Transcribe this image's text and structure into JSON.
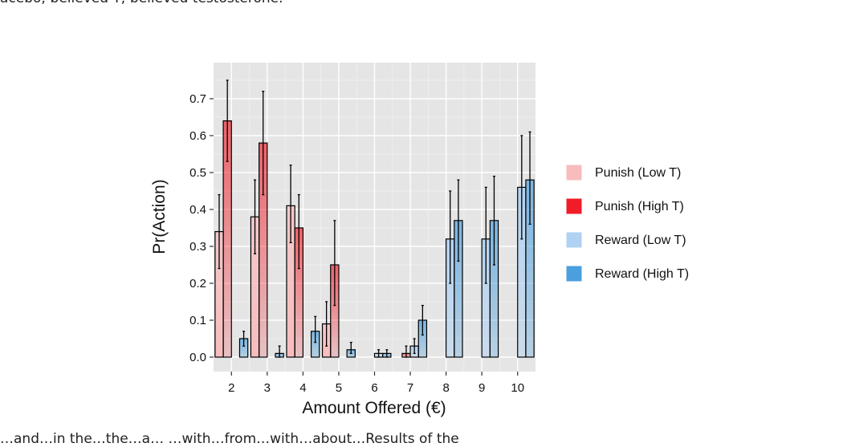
{
  "page_text": {
    "top_line": "acebo; believed T; believed testosterone.",
    "bottom_line": "…and…in the…the…a… …with…from…with…about…Results of the"
  },
  "chart_data": {
    "type": "bar",
    "title": "",
    "xlabel": "Amount Offered (€)",
    "ylabel": "Pr(Action)",
    "ylim": [
      0,
      0.75
    ],
    "yticks": [
      0.0,
      0.1,
      0.2,
      0.3,
      0.4,
      0.5,
      0.6,
      0.7
    ],
    "ytick_labels": [
      "0.0",
      "0.1",
      "0.2",
      "0.3",
      "0.4",
      "0.5",
      "0.6",
      "0.7"
    ],
    "categories": [
      "2",
      "3",
      "4",
      "5",
      "6",
      "7",
      "8",
      "9",
      "10"
    ],
    "grid": true,
    "legend_position": "right",
    "series": [
      {
        "name": "Punish (Low T)",
        "color": "#F8BCBD",
        "values": [
          0.34,
          0.38,
          0.41,
          0.09,
          0.0,
          0.0,
          0.0,
          0.0,
          0.0
        ],
        "err_low": [
          0.24,
          0.28,
          0.31,
          0.03,
          0.0,
          0.0,
          0.0,
          0.0,
          0.0
        ],
        "err_high": [
          0.44,
          0.48,
          0.52,
          0.15,
          0.0,
          0.0,
          0.0,
          0.0,
          0.0
        ]
      },
      {
        "name": "Punish (High T)",
        "color": "#F01C27",
        "values": [
          0.64,
          0.58,
          0.35,
          0.25,
          0.0,
          0.01,
          0.0,
          0.0,
          0.0
        ],
        "err_low": [
          0.53,
          0.44,
          0.24,
          0.14,
          0.0,
          0.0,
          0.0,
          0.0,
          0.0
        ],
        "err_high": [
          0.75,
          0.72,
          0.44,
          0.37,
          0.0,
          0.03,
          0.0,
          0.0,
          0.0
        ]
      },
      {
        "name": "Reward (Low T)",
        "color": "#AFD1F2",
        "values": [
          0.0,
          0.0,
          0.0,
          0.0,
          0.01,
          0.03,
          0.32,
          0.32,
          0.46
        ],
        "err_low": [
          0.0,
          0.0,
          0.0,
          0.0,
          0.0,
          0.01,
          0.2,
          0.2,
          0.32
        ],
        "err_high": [
          0.0,
          0.0,
          0.0,
          0.0,
          0.02,
          0.05,
          0.45,
          0.46,
          0.6
        ]
      },
      {
        "name": "Reward (High T)",
        "color": "#4C9FDE",
        "values": [
          0.05,
          0.01,
          0.07,
          0.02,
          0.01,
          0.1,
          0.37,
          0.37,
          0.48
        ],
        "err_low": [
          0.03,
          0.0,
          0.04,
          0.01,
          0.0,
          0.06,
          0.26,
          0.25,
          0.36
        ],
        "err_high": [
          0.07,
          0.03,
          0.11,
          0.04,
          0.02,
          0.14,
          0.48,
          0.49,
          0.61
        ]
      }
    ]
  }
}
